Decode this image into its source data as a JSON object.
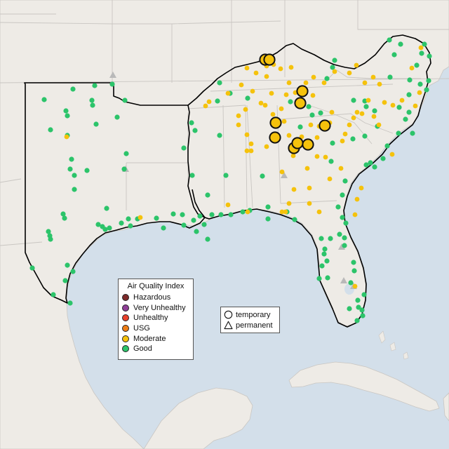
{
  "map": {
    "colors": {
      "ocean": "#d3dfea",
      "land": "#eeebe6",
      "land_border": "#c9c6c2",
      "region_outline": "#000000",
      "hazardous": "#7e2b2b",
      "very_unhealthy": "#8f3f97",
      "unhealthy": "#e8412b",
      "usg": "#ee7d15",
      "moderate": "#f5c20c",
      "good": "#2cc46a"
    }
  },
  "legend": {
    "title": "Air Quality Index",
    "items": [
      {
        "label": "Hazardous",
        "color": "#7e2b2b"
      },
      {
        "label": "Very Unhealthy",
        "color": "#8f3f97"
      },
      {
        "label": "Unhealthy",
        "color": "#e8412b"
      },
      {
        "label": "USG",
        "color": "#ee7d15"
      },
      {
        "label": "Moderate",
        "color": "#f5c20c"
      },
      {
        "label": "Good",
        "color": "#2cc46a"
      }
    ]
  },
  "shape_legend": {
    "items": [
      {
        "label": "temporary",
        "shape": "circle"
      },
      {
        "label": "permanent",
        "shape": "triangle"
      }
    ]
  }
}
